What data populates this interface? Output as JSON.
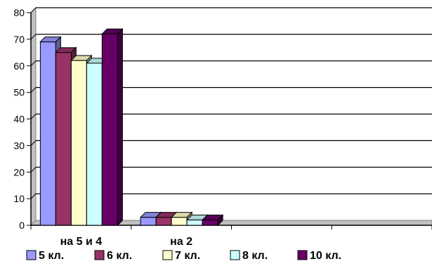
{
  "chart_data": {
    "type": "bar",
    "categories": [
      "на 5 и 4",
      "на 2",
      "",
      ""
    ],
    "series": [
      {
        "name": "5 кл.",
        "values": [
          69,
          3,
          null,
          null
        ],
        "color": "#9999ff"
      },
      {
        "name": "6 кл.",
        "values": [
          65,
          3,
          null,
          null
        ],
        "color": "#993366"
      },
      {
        "name": "7 кл.",
        "values": [
          62,
          3,
          null,
          null
        ],
        "color": "#ffffcc"
      },
      {
        "name": "8 кл.",
        "values": [
          61,
          2,
          null,
          null
        ],
        "color": "#ccffff"
      },
      {
        "name": "10 кл.",
        "values": [
          72,
          2,
          null,
          null
        ],
        "color": "#660066"
      }
    ],
    "ylim": [
      0,
      80
    ],
    "yticks": [
      0,
      10,
      20,
      30,
      40,
      50,
      60,
      70,
      80
    ],
    "grid": true,
    "legend": "bottom",
    "style": "3d-bar"
  }
}
